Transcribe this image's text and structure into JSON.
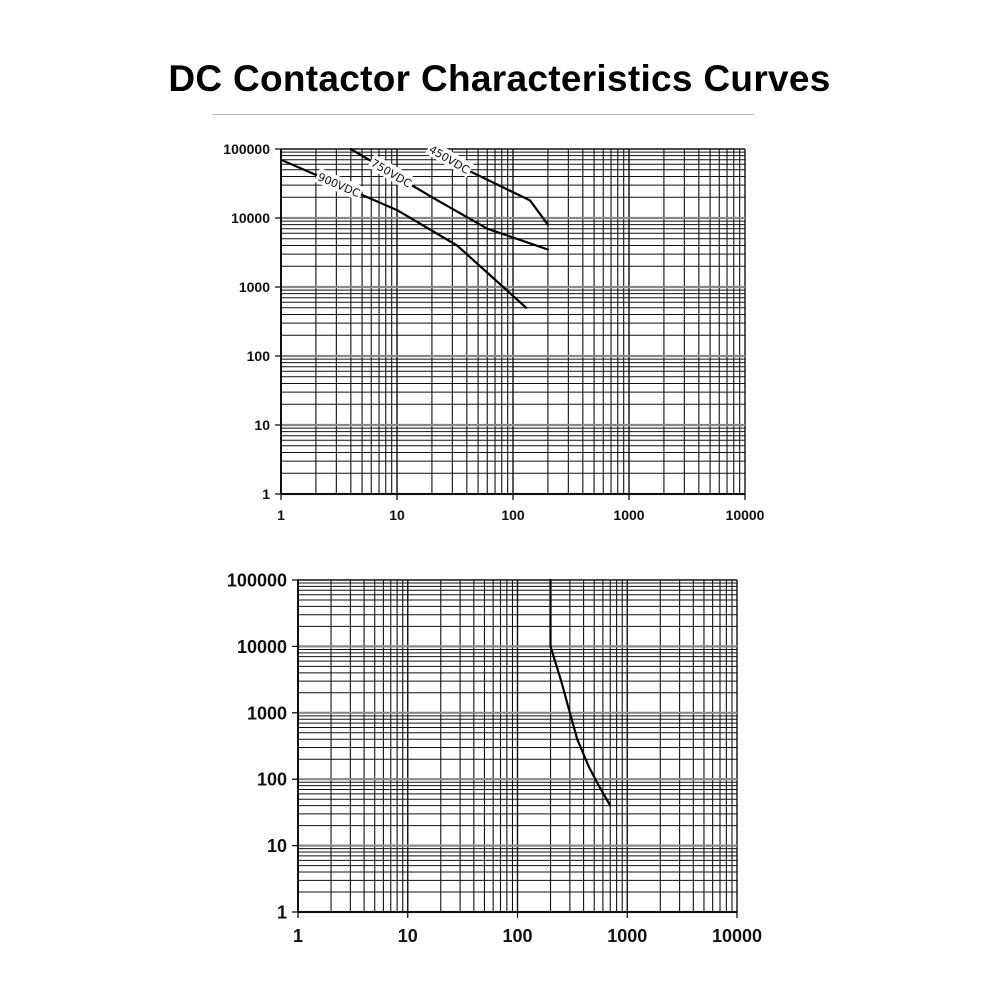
{
  "title": "DC Contactor Characteristics Curves",
  "chart_data": [
    {
      "type": "line",
      "xscale": "log",
      "yscale": "log",
      "xlim": [
        1,
        10000
      ],
      "ylim": [
        1,
        100000
      ],
      "xticks": [
        "1",
        "10",
        "100",
        "1000",
        "10000"
      ],
      "yticks": [
        "1",
        "10",
        "100",
        "1000",
        "10000",
        "100000"
      ],
      "grid": true,
      "series": [
        {
          "name": "900VDC",
          "x": [
            1,
            10,
            33,
            130
          ],
          "y": [
            70000,
            13000,
            4000,
            500
          ]
        },
        {
          "name": "750VDC",
          "x": [
            4,
            20,
            60,
            200
          ],
          "y": [
            100000,
            20000,
            7000,
            3500
          ]
        },
        {
          "name": "450VDC",
          "x": [
            20,
            40,
            140,
            200
          ],
          "y": [
            100000,
            50000,
            18000,
            8000
          ]
        }
      ]
    },
    {
      "type": "line",
      "xscale": "log",
      "yscale": "log",
      "xlim": [
        1,
        10000
      ],
      "ylim": [
        1,
        100000
      ],
      "xticks": [
        "1",
        "10",
        "100",
        "1000",
        "10000"
      ],
      "yticks": [
        "1",
        "10",
        "100",
        "1000",
        "10000",
        "100000"
      ],
      "grid": true,
      "series": [
        {
          "x": [
            200,
            200,
            250,
            300,
            350,
            450,
            550,
            700
          ],
          "y": [
            100000,
            10000,
            3000,
            1000,
            400,
            150,
            80,
            40
          ]
        }
      ]
    }
  ]
}
